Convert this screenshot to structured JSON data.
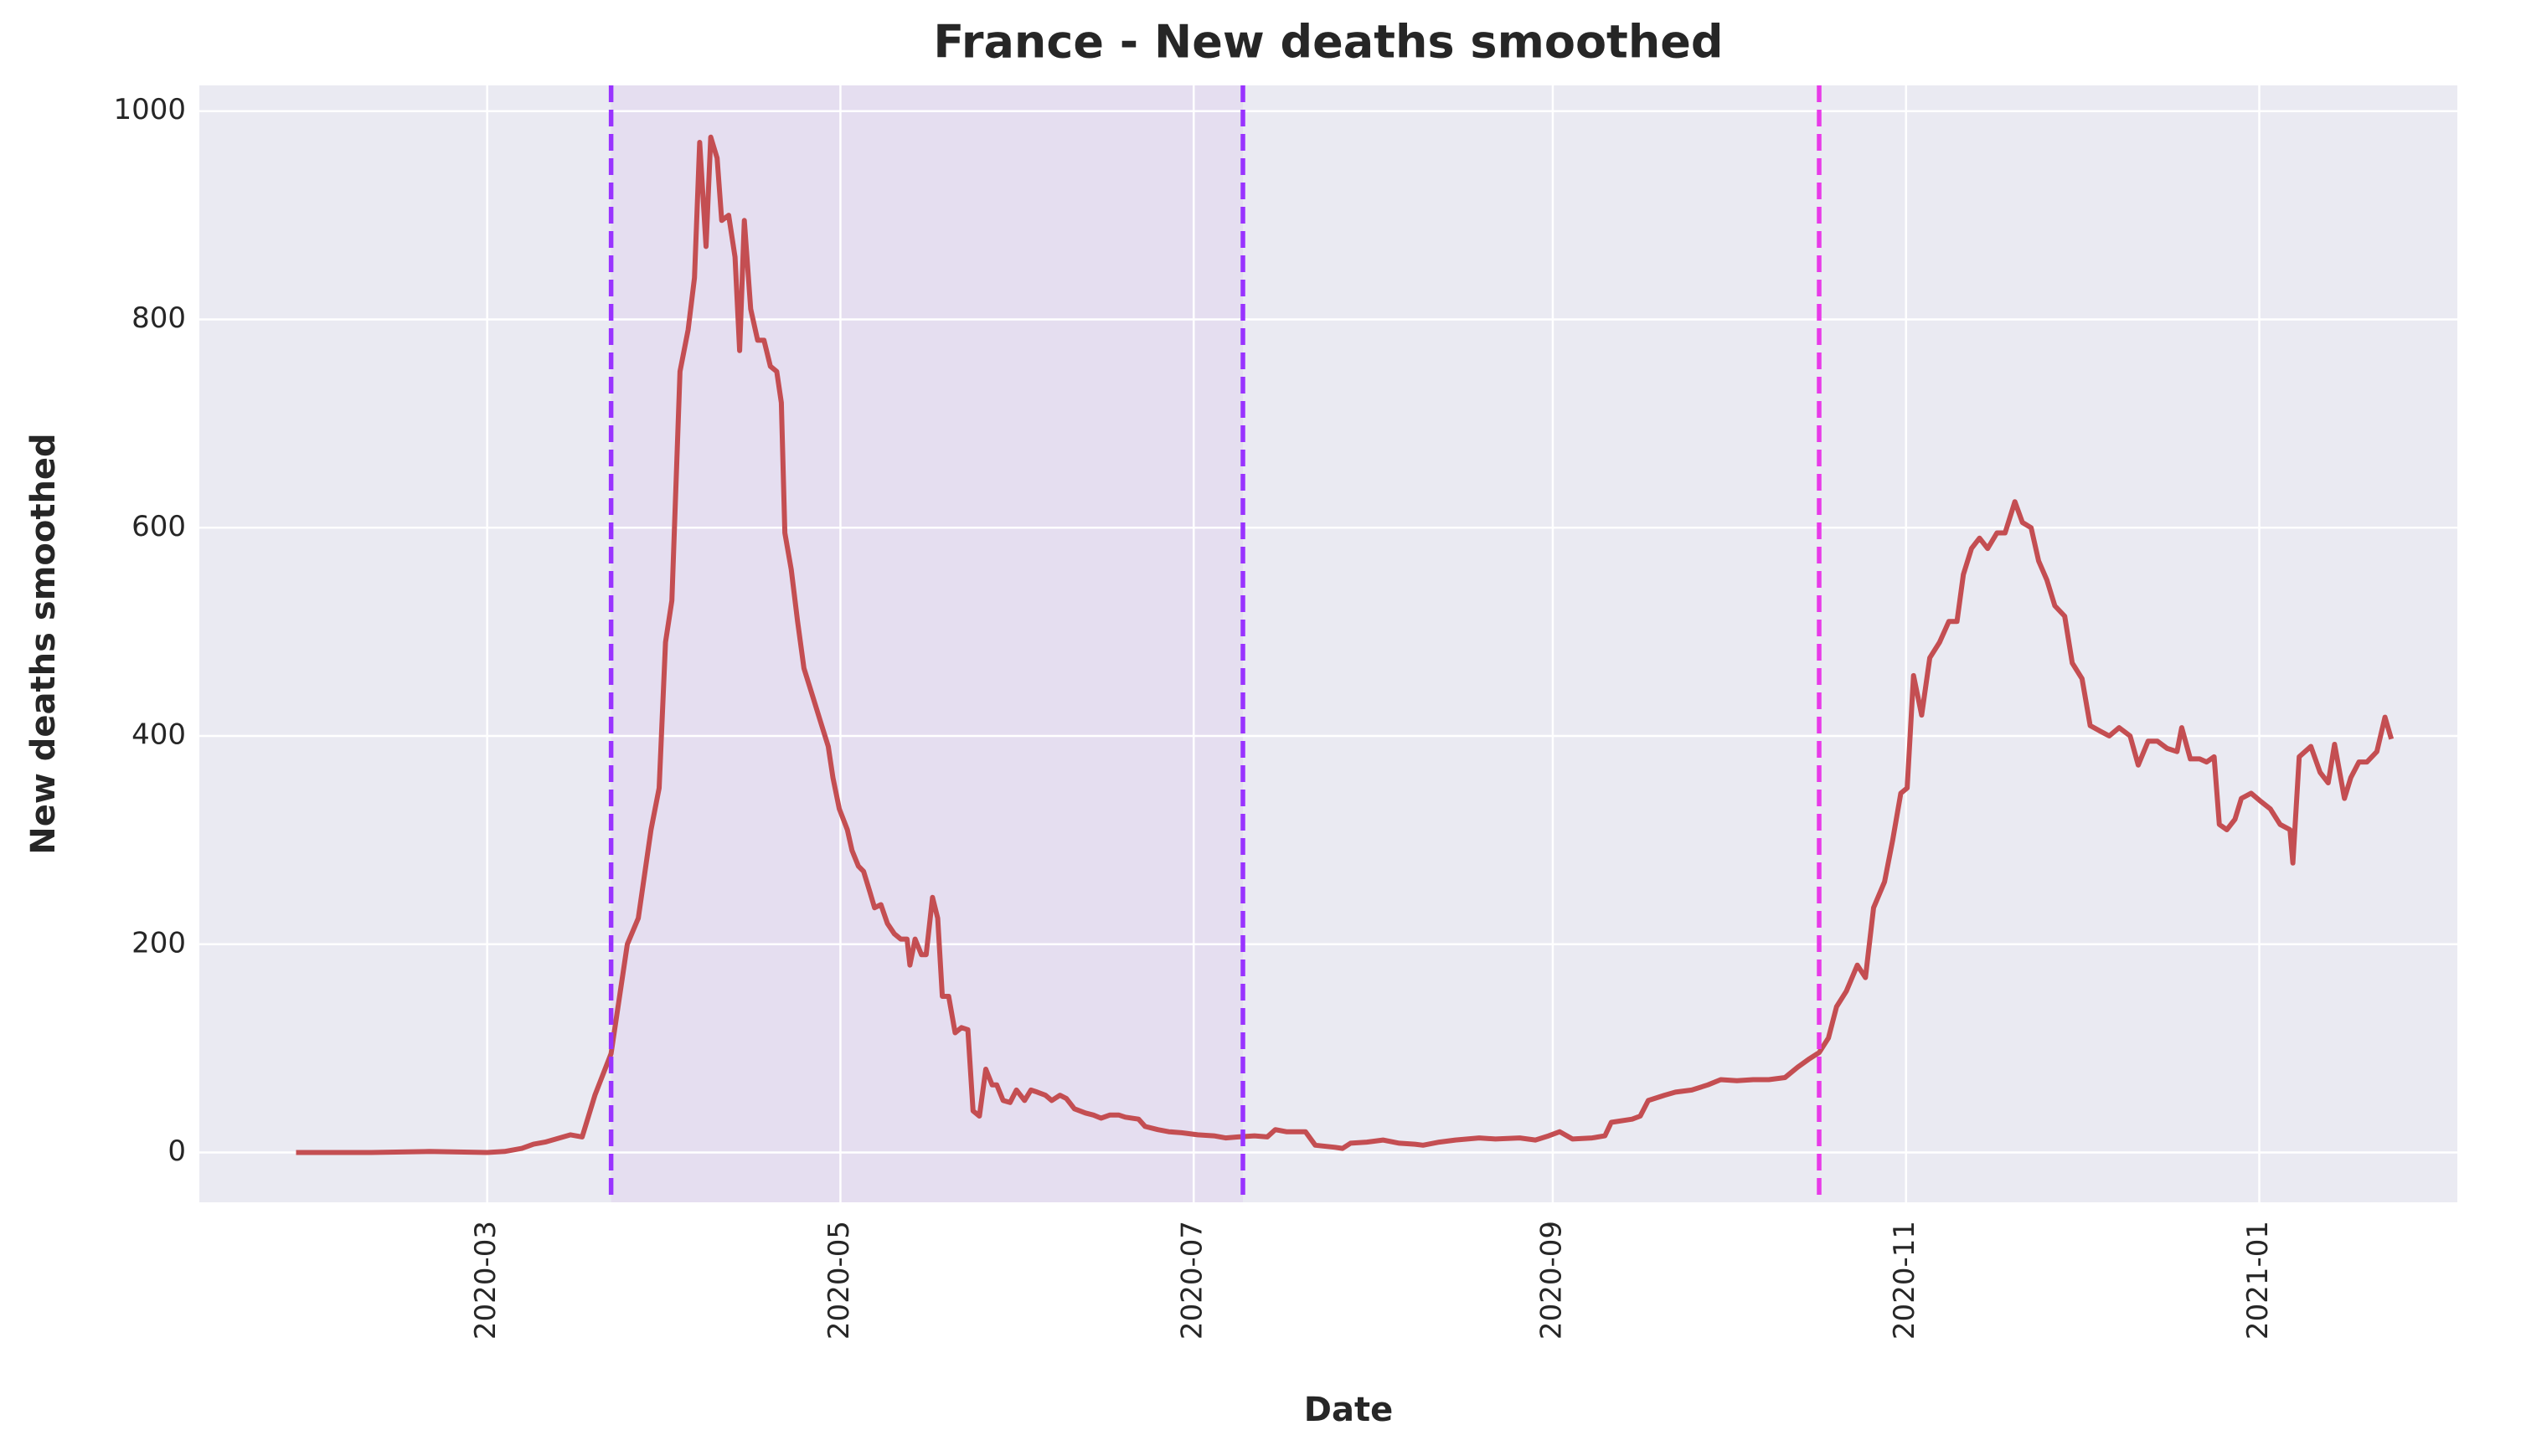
{
  "chart_data": {
    "type": "line",
    "title": "France - New deaths smoothed",
    "xlabel": "Date",
    "ylabel": "New deaths smoothed",
    "xlim": [
      10.3,
      400.2
    ],
    "xticks": [
      {
        "value": 60,
        "label": "2020-03"
      },
      {
        "value": 121,
        "label": "2020-05"
      },
      {
        "value": 182,
        "label": "2020-07"
      },
      {
        "value": 244,
        "label": "2020-09"
      },
      {
        "value": 305,
        "label": "2020-11"
      },
      {
        "value": 366,
        "label": "2021-01"
      }
    ],
    "ylim": [
      -47.8,
      1024.7
    ],
    "yticks": [
      0,
      200,
      400,
      600,
      800,
      1000
    ],
    "grid": true,
    "shade": {
      "x": [
        81.4,
        190.5
      ],
      "color": "#e5def0"
    },
    "vlines": [
      {
        "x": 81.4,
        "color": "#9933ff"
      },
      {
        "x": 190.5,
        "color": "#9933ff"
      },
      {
        "x": 290,
        "color": "#e83be8"
      }
    ],
    "series": [
      {
        "color": "#c44e52",
        "x": [
          27,
          40,
          50,
          60,
          63,
          66,
          68,
          70,
          74.4,
          76.4,
          78.6,
          81.4,
          84.2,
          86.1,
          88.3,
          89.7,
          90.8,
          91.9,
          93.3,
          94.7,
          95.8,
          96.7,
          97.8,
          98.6,
          99.7,
          100.5,
          101.7,
          102.8,
          103.6,
          104.4,
          105.5,
          106.7,
          107.8,
          108.9,
          110,
          110.8,
          111.4,
          112.5,
          113.6,
          114.7,
          116.1,
          117.5,
          118.9,
          119.7,
          120.8,
          122.2,
          123,
          124.1,
          125,
          126.1,
          126.9,
          128,
          129.1,
          130.3,
          131.4,
          132.5,
          133,
          133.9,
          135,
          135.8,
          136.9,
          137.8,
          138.6,
          139.7,
          140.8,
          141.9,
          143,
          143.9,
          145,
          146.1,
          147.2,
          148,
          149.1,
          150.3,
          151.4,
          152.8,
          153.9,
          155,
          156.4,
          157.5,
          158.9,
          160,
          161.4,
          163.3,
          164.7,
          166,
          167.5,
          169.1,
          170.2,
          172.5,
          173.6,
          175.8,
          177.7,
          179.9,
          182.7,
          185.5,
          187.5,
          189.7,
          192.5,
          194.7,
          196.1,
          198,
          201.3,
          203,
          206.4,
          207.7,
          209.1,
          211.9,
          214.7,
          217.5,
          220.2,
          221.6,
          224.4,
          227.2,
          231.3,
          234.1,
          238.3,
          241,
          243.3,
          245.2,
          247.4,
          250.8,
          253,
          254.1,
          257.7,
          259.1,
          260.5,
          263.3,
          265.2,
          268,
          270.8,
          273,
          275.8,
          278.6,
          281.3,
          284.1,
          286.3,
          288.3,
          290,
          291.6,
          293,
          294.7,
          296.6,
          298,
          299.4,
          301.3,
          302.7,
          304.1,
          305.2,
          306.3,
          307.7,
          309.1,
          310.8,
          312.4,
          313.8,
          314.9,
          316.3,
          317.7,
          319.1,
          320.7,
          322.1,
          323.8,
          325.1,
          326.6,
          327.9,
          329.3,
          330.7,
          332.4,
          333.7,
          335.4,
          336.8,
          338.4,
          340.1,
          341.8,
          343.7,
          345.1,
          346.8,
          348.4,
          350.1,
          351.8,
          352.6,
          354.1,
          355.7,
          356.9,
          358.2,
          359.1,
          360.4,
          361.8,
          362.9,
          364.6,
          366.3,
          367.9,
          369.6,
          371.3,
          371.8,
          372.9,
          374.9,
          376.5,
          377.9,
          379,
          380.7,
          381.8,
          383.2,
          384.6,
          386.3,
          387.7,
          388.8
        ],
        "values": [
          0,
          0,
          1,
          0,
          1,
          4,
          8,
          10,
          17,
          15,
          55,
          95,
          200,
          225,
          310,
          350,
          490,
          530,
          750,
          790,
          840,
          970,
          870,
          975,
          955,
          895,
          900,
          860,
          770,
          895,
          810,
          780,
          780,
          755,
          750,
          720,
          595,
          560,
          510,
          465,
          440,
          415,
          390,
          360,
          330,
          310,
          290,
          275,
          270,
          250,
          235,
          238,
          220,
          210,
          205,
          205,
          180,
          205,
          190,
          190,
          245,
          225,
          150,
          150,
          115,
          120,
          118,
          40,
          35,
          80,
          65,
          65,
          50,
          48,
          60,
          50,
          60,
          58,
          55,
          50,
          55,
          52,
          42,
          38,
          36,
          33,
          36,
          36,
          34,
          32,
          25,
          22,
          20,
          19,
          17,
          16,
          14,
          15,
          16,
          15,
          22,
          20,
          20,
          7,
          5,
          4,
          9,
          10,
          12,
          9,
          8,
          7,
          10,
          12,
          14,
          13,
          14,
          12,
          16,
          20,
          13,
          14,
          16,
          29,
          32,
          35,
          50,
          55,
          58,
          60,
          65,
          70,
          69,
          70,
          70,
          72,
          82,
          90,
          96,
          110,
          140,
          155,
          180,
          168,
          235,
          260,
          300,
          345,
          350,
          458,
          420,
          475,
          490,
          510,
          510,
          555,
          580,
          590,
          580,
          595,
          595,
          625,
          605,
          600,
          568,
          550,
          525,
          515,
          470,
          455,
          410,
          405,
          400,
          408,
          400,
          372,
          395,
          395,
          388,
          385,
          408,
          378,
          378,
          375,
          380,
          315,
          310,
          320,
          340,
          345,
          337,
          330,
          315,
          310,
          278,
          380,
          390,
          365,
          355,
          392,
          340,
          360,
          375,
          375,
          385,
          418,
          397
        ]
      }
    ]
  }
}
